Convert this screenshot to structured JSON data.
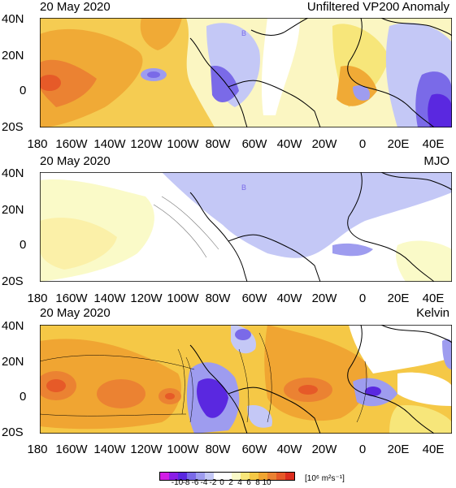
{
  "panels": [
    {
      "date": "20 May 2020",
      "title": "Unfiltered VP200 Anomaly",
      "lat_labels": [
        "40N",
        "20N",
        "0",
        "20S"
      ],
      "lon_labels": [
        "180",
        "160W",
        "140W",
        "120W",
        "100W",
        "80W",
        "60W",
        "40W",
        "20W",
        "0",
        "20E",
        "40E"
      ],
      "annotations": [
        "B"
      ]
    },
    {
      "date": "20 May 2020",
      "title": "MJO",
      "lat_labels": [
        "40N",
        "20N",
        "0",
        "20S"
      ],
      "lon_labels": [
        "180",
        "160W",
        "140W",
        "120W",
        "100W",
        "80W",
        "60W",
        "40W",
        "20W",
        "0",
        "20E",
        "40E"
      ],
      "annotations": [
        "B"
      ]
    },
    {
      "date": "20 May 2020",
      "title": "Kelvin",
      "lat_labels": [
        "40N",
        "20N",
        "0",
        "20S"
      ],
      "lon_labels": [
        "180",
        "160W",
        "140W",
        "120W",
        "100W",
        "80W",
        "60W",
        "40W",
        "20W",
        "0",
        "20E",
        "40E"
      ],
      "annotations": []
    }
  ],
  "colorbar": {
    "ticks": [
      "-10",
      "-8",
      "-6",
      "-4",
      "-2",
      "0",
      "2",
      "4",
      "6",
      "8",
      "10"
    ],
    "units": "[10⁶ m²s⁻¹]",
    "colors": [
      "#d21ee6",
      "#8a1ee6",
      "#5a28e0",
      "#7a6ae8",
      "#9e9cef",
      "#c4c8f6",
      "#ffffff",
      "#ffffff",
      "#fafac8",
      "#f7e67a",
      "#f5c846",
      "#f0a532",
      "#eb8232",
      "#e65a28",
      "#dc2d1e"
    ]
  }
}
